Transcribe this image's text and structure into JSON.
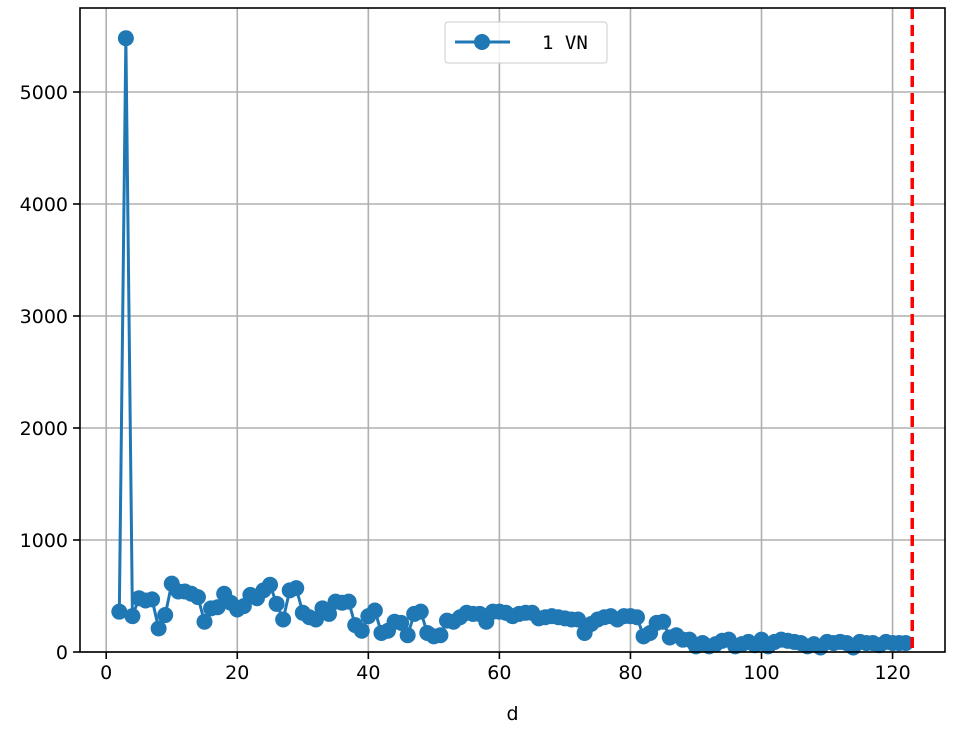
{
  "chart_data": {
    "type": "line",
    "title": "",
    "xlabel": "d",
    "ylabel": "",
    "xlim": [
      -4,
      128
    ],
    "ylim": [
      0,
      5750
    ],
    "grid": true,
    "legend_position": "top-center",
    "x_ticks": [
      0,
      20,
      40,
      60,
      80,
      100,
      120
    ],
    "y_ticks": [
      0,
      1000,
      2000,
      3000,
      4000,
      5000
    ],
    "x_tick_labels": [
      "0",
      "20",
      "40",
      "60",
      "80",
      "100",
      "120"
    ],
    "y_tick_labels": [
      "0",
      "1000",
      "2000",
      "3000",
      "4000",
      "5000"
    ],
    "series": [
      {
        "name": "1 VN",
        "color": "#1f77b4",
        "marker": "circle",
        "x": [
          2,
          3,
          4,
          5,
          6,
          7,
          8,
          9,
          10,
          11,
          12,
          13,
          14,
          15,
          16,
          17,
          18,
          19,
          20,
          21,
          22,
          23,
          24,
          25,
          26,
          27,
          28,
          29,
          30,
          31,
          32,
          33,
          34,
          35,
          36,
          37,
          38,
          39,
          40,
          41,
          42,
          43,
          44,
          45,
          46,
          47,
          48,
          49,
          50,
          51,
          52,
          53,
          54,
          55,
          56,
          57,
          58,
          59,
          60,
          61,
          62,
          63,
          64,
          65,
          66,
          67,
          68,
          69,
          70,
          71,
          72,
          73,
          74,
          75,
          76,
          77,
          78,
          79,
          80,
          81,
          82,
          83,
          84,
          85,
          86,
          87,
          88,
          89,
          90,
          91,
          92,
          93,
          94,
          95,
          96,
          97,
          98,
          99,
          100,
          101,
          102,
          103,
          104,
          105,
          106,
          107,
          108,
          109,
          110,
          111,
          112,
          113,
          114,
          115,
          116,
          117,
          118,
          119,
          120,
          121,
          122
        ],
        "values": [
          360,
          5480,
          320,
          480,
          460,
          470,
          210,
          330,
          610,
          540,
          540,
          520,
          490,
          270,
          390,
          400,
          520,
          440,
          380,
          410,
          510,
          480,
          550,
          600,
          430,
          290,
          550,
          570,
          350,
          310,
          290,
          390,
          340,
          450,
          440,
          450,
          240,
          190,
          320,
          370,
          170,
          190,
          270,
          260,
          150,
          340,
          360,
          170,
          140,
          150,
          280,
          270,
          310,
          350,
          340,
          340,
          270,
          360,
          360,
          350,
          320,
          340,
          350,
          350,
          300,
          310,
          320,
          310,
          300,
          290,
          290,
          170,
          250,
          290,
          310,
          320,
          290,
          320,
          320,
          310,
          140,
          170,
          260,
          270,
          130,
          150,
          110,
          110,
          50,
          80,
          50,
          70,
          100,
          110,
          50,
          70,
          90,
          60,
          110,
          50,
          90,
          110,
          100,
          90,
          80,
          50,
          70,
          40,
          90,
          80,
          90,
          80,
          40,
          90,
          80,
          80,
          60,
          90,
          80,
          80,
          80
        ]
      }
    ],
    "reference_line": {
      "x": 123,
      "color": "#ff0000",
      "style": "dashed"
    }
  }
}
